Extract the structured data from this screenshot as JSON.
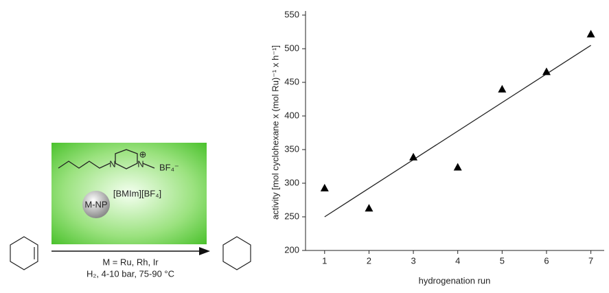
{
  "scheme": {
    "metal": "M-NP",
    "ionic_liquid": "[BMIm][BF₄]",
    "anion": "BF₄⁻",
    "cation_charge": "⊕",
    "n1": "N",
    "n2": "N",
    "conditions_1": "M = Ru, Rh, Ir",
    "conditions_2": "H₂, 4-10 bar, 75-90 °C"
  },
  "chart_data": {
    "type": "scatter",
    "x_label": "hydrogenation run",
    "y_label": "activity [mol cyclohexane x (mol Ru)⁻¹ x h⁻¹]",
    "x": [
      1,
      2,
      3,
      4,
      5,
      6,
      7
    ],
    "values": [
      293,
      263,
      339,
      324,
      440,
      466,
      522
    ],
    "color": "#000000",
    "trend_line": {
      "x": [
        1,
        7
      ],
      "values": [
        250,
        505
      ]
    },
    "xlim": [
      0.57,
      7.3
    ],
    "xticks": [
      1,
      2,
      3,
      4,
      5,
      6,
      7
    ],
    "ylim": [
      200,
      550
    ],
    "yticks": [
      200,
      250,
      300,
      350,
      400,
      450,
      500,
      550
    ]
  }
}
